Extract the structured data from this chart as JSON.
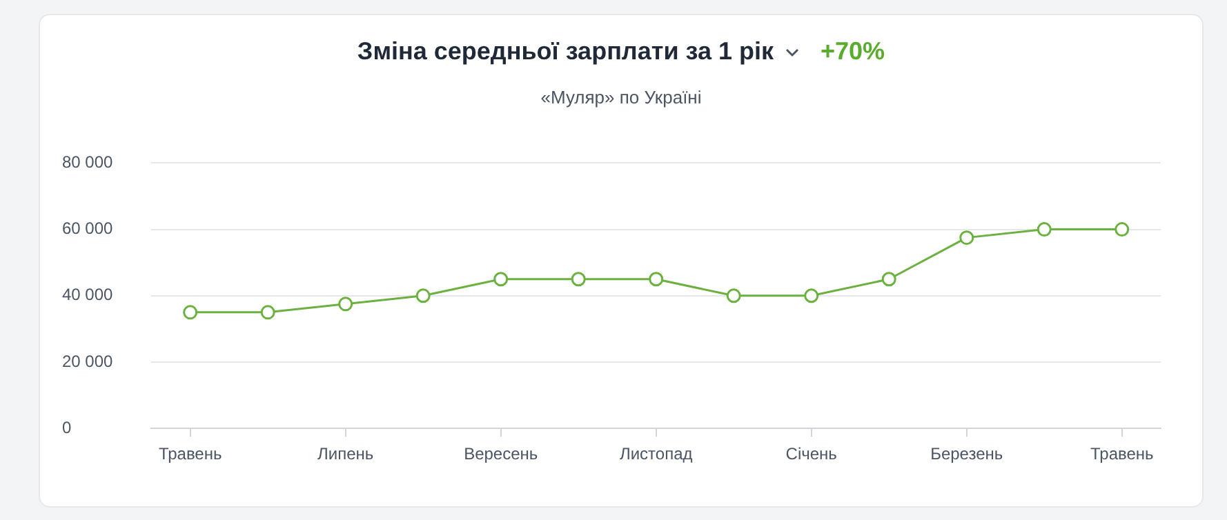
{
  "chart_data": {
    "type": "line",
    "title": "Зміна середньої зарплати за 1 рік",
    "subtitle": "«Муляр» по Україні",
    "annotations": [
      "+70%"
    ],
    "categories": [
      "Травень",
      null,
      "Липень",
      null,
      "Вересень",
      null,
      "Листопад",
      null,
      "Січень",
      null,
      "Березень",
      null,
      "Травень"
    ],
    "series": [
      {
        "color": "#6bb13f",
        "values": [
          35000,
          35000,
          37500,
          40000,
          45000,
          45000,
          45000,
          40000,
          40000,
          45000,
          57500,
          60000,
          60000
        ]
      }
    ],
    "ylim": [
      0,
      80000
    ],
    "yticks": [
      {
        "value": 0,
        "label": "0"
      },
      {
        "value": 20000,
        "label": "20 000"
      },
      {
        "value": 40000,
        "label": "40 000"
      },
      {
        "value": 60000,
        "label": "60 000"
      },
      {
        "value": 80000,
        "label": "80 000"
      }
    ],
    "grid": "y",
    "legend": false,
    "marker": "circle",
    "line_style": "solid"
  }
}
